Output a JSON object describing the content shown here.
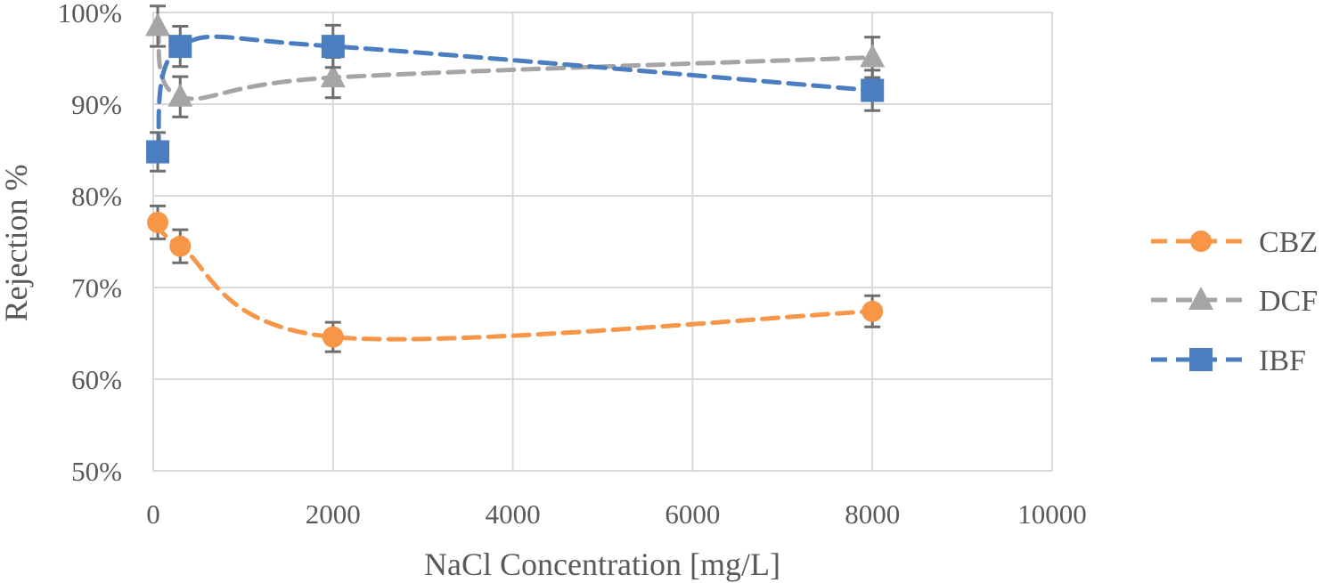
{
  "chart_data": {
    "type": "scatter",
    "title": "",
    "xlabel": "NaCl Concentration [mg/L]",
    "ylabel": "Rejection %",
    "xlim": [
      0,
      10000
    ],
    "ylim": [
      0.5,
      1.0
    ],
    "x_ticks": [
      0,
      2000,
      4000,
      6000,
      8000,
      10000
    ],
    "x_tick_labels": [
      "0",
      "2000",
      "4000",
      "6000",
      "8000",
      "10000"
    ],
    "y_ticks": [
      0.5,
      0.6,
      0.7,
      0.8,
      0.9,
      1.0
    ],
    "y_tick_labels": [
      "50%",
      "60%",
      "70%",
      "80%",
      "90%",
      "100%"
    ],
    "grid": true,
    "legend_position": "right",
    "line_style": "dashed smooth",
    "series": [
      {
        "name": "CBZ",
        "marker": "circle",
        "color": "#F79646",
        "x": [
          50,
          300,
          2000,
          8000
        ],
        "y": [
          0.771,
          0.745,
          0.646,
          0.674
        ],
        "error": [
          0.018,
          0.018,
          0.016,
          0.017
        ]
      },
      {
        "name": "DCF",
        "marker": "triangle",
        "color": "#A5A5A5",
        "x": [
          50,
          300,
          2000,
          8000
        ],
        "y": [
          0.985,
          0.908,
          0.929,
          0.951
        ],
        "error": [
          0.022,
          0.022,
          0.022,
          0.022
        ]
      },
      {
        "name": "IBF",
        "marker": "square",
        "color": "#4A7EC1",
        "x": [
          50,
          300,
          2000,
          8000
        ],
        "y": [
          0.848,
          0.963,
          0.963,
          0.915
        ],
        "error": [
          0.021,
          0.022,
          0.023,
          0.022
        ]
      }
    ]
  }
}
